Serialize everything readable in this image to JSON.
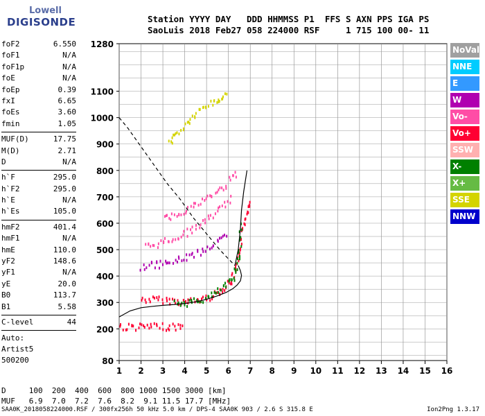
{
  "logo": {
    "line1": "Lowell",
    "line2": "DIGISONDE"
  },
  "header": {
    "line1": "Station YYYY DAY   DDD HHMMSS P1  FFS S AXN PPS IGA PS",
    "line2": "SaoLuis 2018 Feb27 058 224000 RSF     1 715 100 00- 11"
  },
  "params": [
    {
      "name": "foF2",
      "value": "6.550"
    },
    {
      "name": "foF1",
      "value": "N/A"
    },
    {
      "name": "foF1p",
      "value": "N/A"
    },
    {
      "name": "foE",
      "value": "N/A"
    },
    {
      "name": "foEp",
      "value": "0.39"
    },
    {
      "name": "fxI",
      "value": "6.65"
    },
    {
      "name": "foEs",
      "value": "3.60"
    },
    {
      "name": "fmin",
      "value": "1.05"
    },
    {
      "sep": true
    },
    {
      "name": "MUF(D)",
      "value": "17.75"
    },
    {
      "name": "M(D)",
      "value": "2.71"
    },
    {
      "name": "D",
      "value": "N/A"
    },
    {
      "sep": true
    },
    {
      "name": "h`F",
      "value": "295.0"
    },
    {
      "name": "h`F2",
      "value": "295.0"
    },
    {
      "name": "h`E",
      "value": "N/A"
    },
    {
      "name": "h`Es",
      "value": "105.0"
    },
    {
      "sep": true
    },
    {
      "name": "hmF2",
      "value": "401.4"
    },
    {
      "name": "hmF1",
      "value": "N/A"
    },
    {
      "name": "hmE",
      "value": "110.0"
    },
    {
      "name": "yF2",
      "value": "148.6"
    },
    {
      "name": "yF1",
      "value": "N/A"
    },
    {
      "name": "yE",
      "value": "20.0"
    },
    {
      "name": "B0",
      "value": "113.7"
    },
    {
      "name": "B1",
      "value": "5.58"
    },
    {
      "sep": true
    },
    {
      "name": "C-level",
      "value": "44"
    },
    {
      "sep": true
    }
  ],
  "auto": {
    "line1": "Auto:",
    "line2": "Artist5",
    "line3": "500200"
  },
  "footer": {
    "line1": "D     100  200  400  600  800 1000 1500 3000 [km]",
    "line2": "MUF   6.9  7.0  7.2  7.6  8.2  9.1 11.5 17.7 [MHz]",
    "line3": "SAA0K_2018058224000.RSF / 300fx256h 50 kHz 5.0 km / DPS-4 SAA0K 903 / 2.6 S 315.8 E",
    "version": "Ion2Png 1.3.17"
  },
  "legend": [
    {
      "label": "NoVal",
      "color": "#a0a0a0"
    },
    {
      "label": "NNE",
      "color": "#00ccff"
    },
    {
      "label": "E",
      "color": "#3399ff"
    },
    {
      "label": "W",
      "color": "#b000b0"
    },
    {
      "label": "Vo-",
      "color": "#ff4da6"
    },
    {
      "label": "Vo+",
      "color": "#ff0033"
    },
    {
      "label": "SSW",
      "color": "#ffb0b0"
    },
    {
      "label": "X-",
      "color": "#008000"
    },
    {
      "label": "X+",
      "color": "#66bb44"
    },
    {
      "label": "SSE",
      "color": "#d4d400"
    },
    {
      "label": "NNW",
      "color": "#0000cc"
    }
  ],
  "chart_data": {
    "type": "scatter",
    "title": "",
    "xlabel": "",
    "ylabel": "",
    "xlim": [
      1,
      16
    ],
    "ylim": [
      80,
      1280
    ],
    "x_ticks": [
      1,
      2,
      3,
      4,
      5,
      6,
      7,
      8,
      9,
      10,
      11,
      12,
      13,
      14,
      15,
      16
    ],
    "x_tick_labels": [
      "1",
      "2",
      "3",
      "4",
      "5",
      "6",
      "7",
      "8",
      "9",
      "10",
      "11",
      "12",
      "13",
      "14",
      "15",
      "16"
    ],
    "y_ticks": [
      80,
      200,
      300,
      400,
      500,
      600,
      700,
      800,
      900,
      1000,
      1100,
      1280
    ],
    "y_tick_labels": [
      "80",
      "200",
      "300",
      "400",
      "500",
      "600",
      "700",
      "800",
      "900",
      "1000",
      "1100",
      "1280"
    ],
    "grid": true,
    "series": [
      {
        "type": "trace",
        "color": "#ff0033",
        "x": [
          2.0,
          2.5,
          3.0,
          3.5,
          4.0,
          4.5,
          5.0,
          5.5,
          5.8,
          6.1,
          6.3,
          6.45,
          6.55,
          6.7,
          6.85,
          6.95
        ],
        "y": [
          315,
          315,
          314,
          310,
          306,
          312,
          322,
          340,
          360,
          385,
          420,
          470,
          530,
          600,
          660,
          700
        ]
      },
      {
        "type": "trace",
        "color": "#008000",
        "x": [
          3.5,
          4.0,
          4.5,
          5.0,
          5.5,
          5.9,
          6.2,
          6.4,
          6.5,
          6.55
        ],
        "y": [
          300,
          302,
          308,
          320,
          345,
          370,
          400,
          450,
          520,
          620
        ]
      },
      {
        "type": "trace",
        "color": "#ff0033",
        "x": [
          1.0,
          1.5,
          2.0,
          2.5,
          3.0,
          3.5,
          4.0
        ],
        "y": [
          212,
          212,
          212,
          212,
          212,
          212,
          212
        ]
      },
      {
        "type": "trace",
        "color": "#d4d400",
        "x": [
          3.3,
          3.6,
          4.0,
          4.4,
          4.8,
          5.2,
          5.6,
          5.95
        ],
        "y": [
          910,
          940,
          975,
          1010,
          1040,
          1060,
          1075,
          1090
        ]
      },
      {
        "type": "trace",
        "color": "#b000b0",
        "x": [
          2.0,
          2.5,
          3.0,
          3.5,
          4.0,
          4.5,
          5.0,
          5.5,
          6.0
        ],
        "y": [
          440,
          445,
          450,
          460,
          475,
          490,
          510,
          535,
          560
        ]
      },
      {
        "type": "trace",
        "color": "#ff4da6",
        "x": [
          2.2,
          2.7,
          3.2,
          3.7,
          4.2,
          4.7,
          5.2,
          5.7,
          6.2
        ],
        "y": [
          515,
          525,
          540,
          555,
          575,
          600,
          630,
          665,
          705
        ]
      },
      {
        "type": "trace",
        "color": "#ff4da6",
        "x": [
          3.0,
          3.5,
          4.0,
          4.5,
          5.0,
          5.5,
          6.0,
          6.4
        ],
        "y": [
          620,
          635,
          655,
          675,
          700,
          725,
          760,
          800
        ]
      }
    ],
    "profile": {
      "x": [
        1.0,
        1.5,
        2.0,
        2.5,
        3.0,
        3.5,
        4.0,
        4.5,
        5.0,
        5.5,
        5.9,
        6.2,
        6.4,
        6.55,
        6.6,
        6.55,
        6.45
      ],
      "y": [
        245,
        268,
        280,
        285,
        289,
        292,
        296,
        302,
        312,
        325,
        338,
        352,
        366,
        382,
        402,
        420,
        440
      ]
    },
    "profile_dashed": {
      "x": [
        1.0,
        1.4,
        2.0,
        2.6,
        3.2,
        3.8,
        4.4,
        5.0,
        5.6,
        6.0,
        6.3
      ],
      "y": [
        1000,
        960,
        890,
        820,
        750,
        690,
        620,
        560,
        500,
        465,
        440
      ]
    },
    "profile_upper": {
      "x": [
        6.3,
        6.45,
        6.55,
        6.6,
        6.7,
        6.85
      ],
      "y": [
        440,
        500,
        580,
        650,
        720,
        800
      ]
    }
  }
}
